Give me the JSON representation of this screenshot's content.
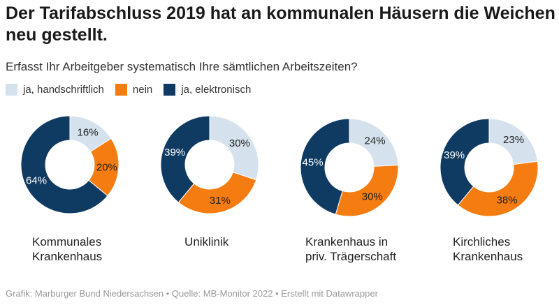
{
  "title": "Der Tarifabschluss 2019 hat an kommunalen Häusern die Weichen neu gestellt.",
  "subtitle": "Erfasst Ihr Arbeitgeber systematisch Ihre sämtlichen Arbeitszeiten?",
  "footer": "Grafik: Marburger Bund Niedersachsen • Quelle: MB-Monitor 2022 • Erstellt mit Datawrapper",
  "chart_data": {
    "type": "pie",
    "donut": true,
    "legend_position": "top-left",
    "series": [
      {
        "name": "ja, handschriftlich",
        "color": "#d5e2ed",
        "label_color": "#222222"
      },
      {
        "name": "nein",
        "color": "#f57c10",
        "label_color": "#222222"
      },
      {
        "name": "ja, elektronisch",
        "color": "#0f3b63",
        "label_color": "#ffffff"
      }
    ],
    "charts": [
      {
        "label": "Kommunales Krankenhaus",
        "values": [
          16,
          20,
          64
        ]
      },
      {
        "label": "Uniklinik",
        "values": [
          30,
          31,
          39
        ]
      },
      {
        "label": "Krankenhaus in priv. Trägerschaft",
        "values": [
          24,
          30,
          45
        ]
      },
      {
        "label": "Kirchliches Krankenhaus",
        "values": [
          23,
          38,
          39
        ]
      }
    ]
  }
}
